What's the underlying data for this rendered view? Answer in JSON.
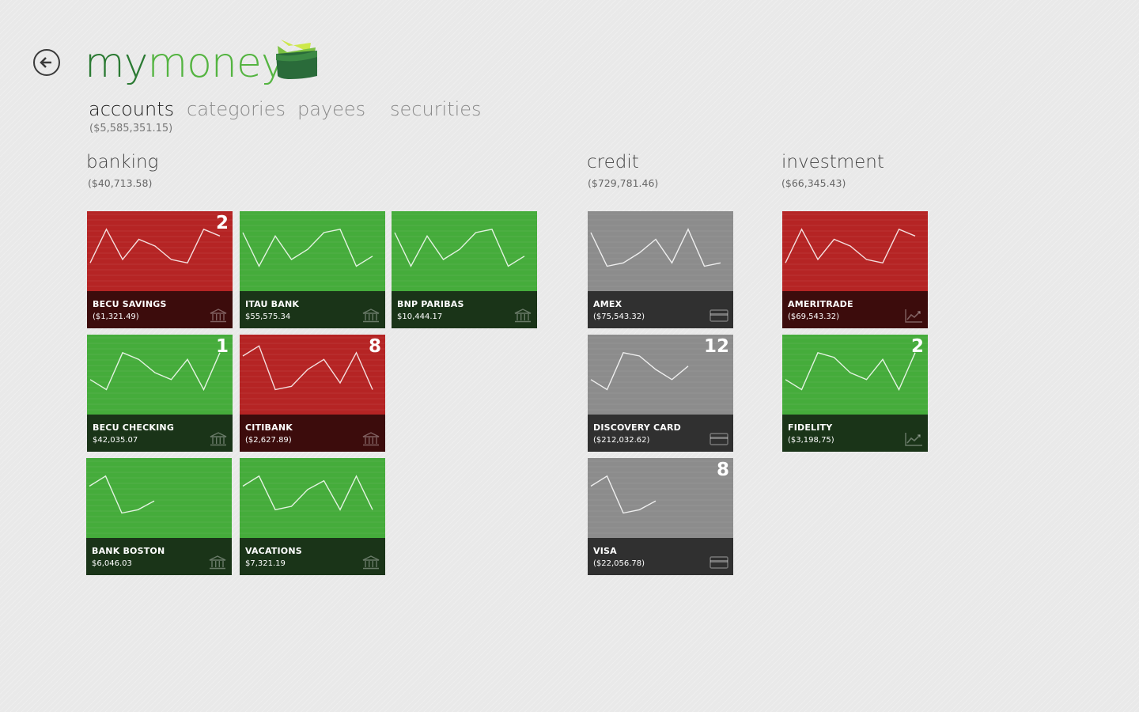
{
  "app": {
    "title_part1": "my",
    "title_part2": "money",
    "back_icon": "back-arrow-icon",
    "logo_icon": "wallet-icon"
  },
  "nav": {
    "tabs": [
      {
        "label": "accounts",
        "sub": "($5,585,351.15)",
        "active": true
      },
      {
        "label": "categories"
      },
      {
        "label": "payees"
      },
      {
        "label": "securities"
      }
    ]
  },
  "groups": [
    {
      "title": "banking",
      "total": "($40,713.58)"
    },
    {
      "title": "credit",
      "total": "($729,781.46)"
    },
    {
      "title": "investment",
      "total": "($66,345.43)"
    }
  ],
  "colors": {
    "positive": "#45ac3b",
    "negative": "#b52424",
    "credit": "#8c8c8c"
  },
  "tiles": [
    {
      "name": "BECU SAVINGS",
      "amount": "($1,321.49)",
      "badge": "2",
      "status": "red",
      "icon": "bank-icon",
      "trend": [
        0.35,
        0.85,
        0.4,
        0.7,
        0.6,
        0.4,
        0.35,
        0.85,
        0.75
      ]
    },
    {
      "name": "ITAU BANK",
      "amount": "$55,575.34",
      "badge": "",
      "status": "green",
      "icon": "bank-icon",
      "trend": [
        0.8,
        0.3,
        0.75,
        0.4,
        0.55,
        0.8,
        0.85,
        0.3,
        0.45
      ]
    },
    {
      "name": "BNP PARIBAS",
      "amount": "$10,444.17",
      "badge": "",
      "status": "green",
      "icon": "bank-icon",
      "trend": [
        0.8,
        0.3,
        0.75,
        0.4,
        0.55,
        0.8,
        0.85,
        0.3,
        0.45
      ]
    },
    {
      "name": "BECU CHECKING",
      "amount": "$42,035.07",
      "badge": "1",
      "status": "green",
      "icon": "bank-icon",
      "trend": [
        0.45,
        0.3,
        0.85,
        0.75,
        0.55,
        0.45,
        0.75,
        0.3,
        0.85
      ]
    },
    {
      "name": "CITIBANK",
      "amount": "($2,627.89)",
      "badge": "8",
      "status": "red",
      "icon": "bank-icon",
      "trend": [
        0.8,
        0.95,
        0.3,
        0.35,
        0.6,
        0.75,
        0.4,
        0.85,
        0.3
      ]
    },
    {
      "name": "BANK BOSTON",
      "amount": "$6,046.03",
      "badge": "",
      "status": "green",
      "icon": "bank-icon",
      "trend": [
        0.7,
        0.85,
        0.3,
        0.35,
        0.48
      ]
    },
    {
      "name": "VACATIONS",
      "amount": "$7,321.19",
      "badge": "",
      "status": "green",
      "icon": "bank-icon",
      "trend": [
        0.7,
        0.85,
        0.35,
        0.4,
        0.65,
        0.78,
        0.35,
        0.85,
        0.35
      ]
    },
    {
      "name": "AMEX",
      "amount": "($75,543.32)",
      "badge": "",
      "status": "gray",
      "icon": "credit-card-icon",
      "trend": [
        0.8,
        0.3,
        0.35,
        0.5,
        0.7,
        0.35,
        0.85,
        0.3,
        0.35
      ]
    },
    {
      "name": "DISCOVERY CARD",
      "amount": "($212,032.62)",
      "badge": "12",
      "status": "gray",
      "icon": "credit-card-icon",
      "trend": [
        0.45,
        0.3,
        0.85,
        0.8,
        0.6,
        0.45,
        0.65
      ]
    },
    {
      "name": "VISA",
      "amount": "($22,056.78)",
      "badge": "8",
      "status": "gray",
      "icon": "credit-card-icon",
      "trend": [
        0.7,
        0.85,
        0.3,
        0.35,
        0.48
      ]
    },
    {
      "name": "AMERITRADE",
      "amount": "($69,543.32)",
      "badge": "",
      "status": "red",
      "icon": "stock-chart-icon",
      "trend": [
        0.35,
        0.85,
        0.4,
        0.7,
        0.6,
        0.4,
        0.35,
        0.85,
        0.75
      ]
    },
    {
      "name": "FIDELITY",
      "amount": "($3,198,75)",
      "badge": "2",
      "status": "green",
      "icon": "stock-chart-icon",
      "trend": [
        0.45,
        0.3,
        0.85,
        0.78,
        0.55,
        0.45,
        0.75,
        0.3,
        0.85
      ]
    }
  ]
}
